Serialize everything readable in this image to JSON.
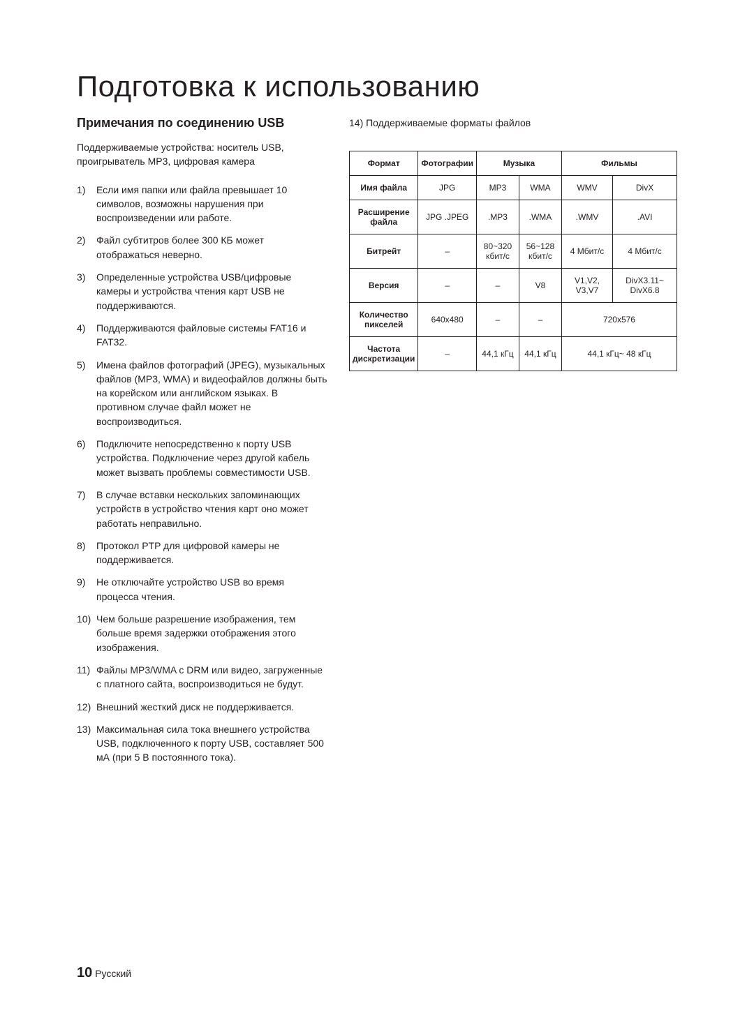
{
  "page": {
    "title": "Подготовка к использованию",
    "section_title": "Примечания по соединению USB",
    "intro": "Поддерживаемые устройства: носитель USB, проигрыватель MP3, цифровая камера",
    "notes": [
      "Если имя папки или файла превышает 10 символов, возможны нарушения при воспроизведении или работе.",
      "Файл субтитров более 300 КБ может отображаться неверно.",
      "Определенные устройства USB/цифровые камеры и устройства чтения карт USB не поддерживаются.",
      "Поддерживаются файловые системы FAT16 и FAT32.",
      "Имена файлов фотографий (JPEG), музыкальных файлов (MP3, WMA) и видеофайлов должны быть на корейском или английском языках. В противном случае файл может не воспроизводиться.",
      "Подключите непосредственно к порту USB устройства. Подключение через другой кабель может вызвать проблемы совместимости USB.",
      "В случае вставки нескольких запоминающих устройств в устройство чтения карт оно может работать неправильно.",
      "Протокол PTP для цифровой камеры не поддерживается.",
      "Не отключайте устройство USB во время процесса чтения.",
      "Чем больше разрешение изображения, тем больше время задержки отображения этого изображения.",
      "Файлы MP3/WMA с DRM или видео, загруженные с платного сайта, воспроизводиться не будут.",
      "Внешний жесткий диск не поддерживается.",
      "Максимальная сила тока внешнего устройства USB, подключенного к порту USB, составляет 500 мА (при 5 В постоянного тока)."
    ],
    "note14": "14) Поддерживаемые форматы файлов",
    "footer": {
      "number": "10",
      "lang": "Русский"
    }
  },
  "table": {
    "col_widths": [
      "18%",
      "14%",
      "14%",
      "14%",
      "18%",
      "22%"
    ],
    "headers": {
      "format": "Формат",
      "photos": "Фотографии",
      "music": "Музыка",
      "movies": "Фильмы"
    },
    "row_labels": {
      "filename": "Имя файла",
      "extension": "Расширение файла",
      "bitrate": "Битрейт",
      "version": "Версия",
      "pixels": "Количество пикселей",
      "samplerate": "Частота дискретизации"
    },
    "rows": {
      "filename": {
        "photo": "JPG",
        "mp3": "MP3",
        "wma": "WMA",
        "wmv": "WMV",
        "divx": "DivX"
      },
      "extension": {
        "photo": "JPG .JPEG",
        "mp3": ".MP3",
        "wma": ".WMA",
        "wmv": ".WMV",
        "divx": ".AVI"
      },
      "bitrate": {
        "photo": "–",
        "mp3": "80~320 кбит/с",
        "wma": "56~128 кбит/с",
        "wmv": "4 Мбит/с",
        "divx": "4 Мбит/с"
      },
      "version": {
        "photo": "–",
        "mp3": "–",
        "wma": "V8",
        "wmv": "V1,V2, V3,V7",
        "divx": "DivX3.11~ DivX6.8"
      },
      "pixels": {
        "photo": "640x480",
        "mp3": "–",
        "wma": "–",
        "movies_merged": "720x576"
      },
      "samplerate": {
        "photo": "–",
        "mp3": "44,1 кГц",
        "wma": "44,1 кГц",
        "movies_merged": "44,1 кГц~ 48 кГц"
      }
    }
  },
  "style": {
    "text_color": "#231f20",
    "background": "#ffffff",
    "border_color": "#231f20",
    "title_fontsize": 42,
    "section_fontsize": 18,
    "body_fontsize": 14,
    "table_fontsize": 12
  }
}
